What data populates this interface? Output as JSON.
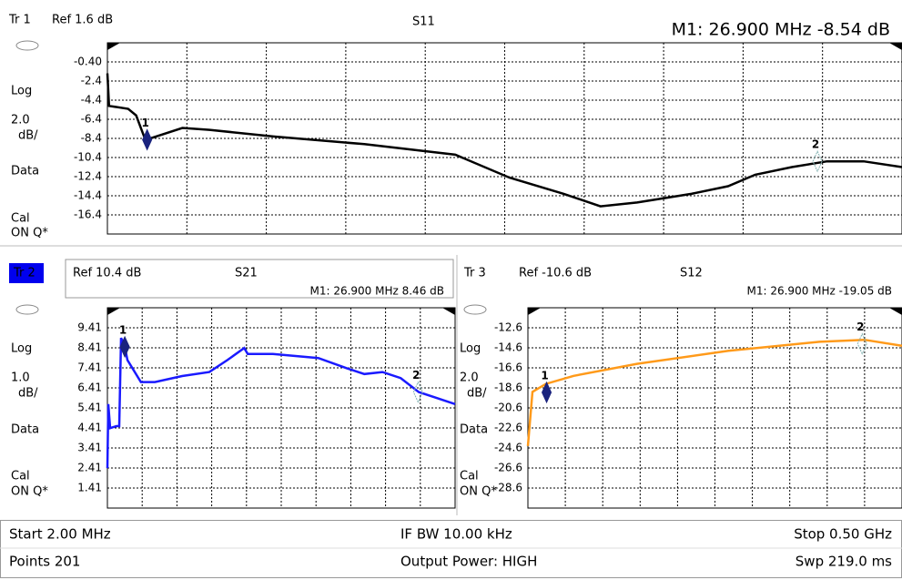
{
  "chart_data": [
    {
      "type": "line",
      "trace": "Tr 1",
      "ref": "Ref 1.6 dB",
      "title": "S11",
      "readout": "M1:  26.900 MHz  -8.54 dB",
      "format": "Log",
      "scale": "2.0",
      "scale_unit": "dB/",
      "data_label": "Data",
      "cal": "Cal",
      "cal_status": "ON Q*",
      "title_color": "#ffff00",
      "color": "#000000",
      "grid": true,
      "xlim": [
        2,
        500
      ],
      "ylim": [
        -18.4,
        1.6
      ],
      "yticks": [
        {
          "value": -0.4,
          "label": "-0.40"
        },
        -2.4,
        -4.4,
        -6.4,
        -8.4,
        -10.4,
        -12.4,
        -14.4,
        -16.4
      ],
      "x": [
        2,
        3,
        15,
        20,
        25,
        27,
        49,
        66,
        106,
        163,
        220,
        254,
        288,
        311,
        334,
        368,
        391,
        408,
        431,
        453,
        476,
        500
      ],
      "values": [
        -1.6,
        -5,
        -5.3,
        -6,
        -8.2,
        -8.5,
        -7.3,
        -7.5,
        -8.2,
        -9,
        -10.1,
        -12.5,
        -14.2,
        -15.5,
        -15.1,
        -14.2,
        -13.4,
        -12.2,
        -11.4,
        -10.8,
        -10.8,
        -11.4
      ],
      "markers": [
        {
          "label": "1",
          "x": 26.9,
          "value": -8.54
        },
        {
          "label": "2",
          "x": 447,
          "value": -10.8
        }
      ]
    },
    {
      "type": "line",
      "trace": "Tr 2",
      "ref": "Ref 10.4 dB",
      "title": "S21",
      "readout": "M1:  26.900 MHz  8.46 dB",
      "format": "Log",
      "scale": "1.0",
      "scale_unit": "dB/",
      "data_label": "Data",
      "cal": "Cal",
      "cal_status": "ON Q*",
      "title_color": "#add8e6",
      "color": "#1a1aff",
      "grid": true,
      "xlim": [
        2,
        500
      ],
      "ylim": [
        0.41,
        10.41
      ],
      "yticks": [
        9.41,
        8.41,
        7.41,
        6.41,
        5.41,
        4.41,
        3.41,
        2.41,
        1.41
      ],
      "x": [
        2,
        3.3,
        5.9,
        15,
        19,
        21.6,
        26.8,
        30.7,
        50,
        70,
        109,
        148,
        174,
        198,
        203,
        239,
        304,
        344,
        370,
        396,
        422,
        448,
        474,
        500
      ],
      "values": [
        2.4,
        5.6,
        4.4,
        4.5,
        4.5,
        8.9,
        8.5,
        7.8,
        6.7,
        6.7,
        7.0,
        7.2,
        7.8,
        8.4,
        8.1,
        8.1,
        7.9,
        7.4,
        7.1,
        7.2,
        6.9,
        6.2,
        5.9,
        5.6
      ],
      "markers": [
        {
          "label": "1",
          "x": 26.9,
          "value": 8.46
        },
        {
          "label": "2",
          "x": 447,
          "value": 6.2
        }
      ]
    },
    {
      "type": "line",
      "trace": "Tr 3",
      "ref": "Ref -10.6 dB",
      "title": "S12",
      "readout": "M1:  26.900 MHz  -19.05 dB",
      "format": "Log",
      "scale": "2.0",
      "scale_unit": "dB/",
      "data_label": "Data",
      "cal": "Cal",
      "cal_status": "ON Q*",
      "title_color": "#ffa500",
      "color": "#ff9a1a",
      "grid": true,
      "xlim": [
        2,
        500
      ],
      "ylim": [
        -30.6,
        -10.6
      ],
      "yticks": [
        -12.6,
        -14.6,
        -16.6,
        -18.6,
        -20.6,
        -22.6,
        -24.6,
        -26.6,
        -28.6
      ],
      "x": [
        2,
        8,
        26,
        63,
        147,
        269,
        390,
        450,
        500
      ],
      "values": [
        -24.4,
        -19,
        -18.2,
        -17.4,
        -16.2,
        -14.9,
        -14,
        -13.8,
        -14.4
      ],
      "markers": [
        {
          "label": "1",
          "x": 26.9,
          "value": -19.05
        },
        {
          "label": "2",
          "x": 447,
          "value": -14.2
        }
      ]
    }
  ],
  "footer": {
    "start": "Start 2.00 MHz",
    "points": "Points 201",
    "ifbw": "IF BW 10.00 kHz",
    "power": "Output Power: HIGH",
    "stop": "Stop 0.50 GHz",
    "sweep": "Swp 219.0 ms"
  }
}
